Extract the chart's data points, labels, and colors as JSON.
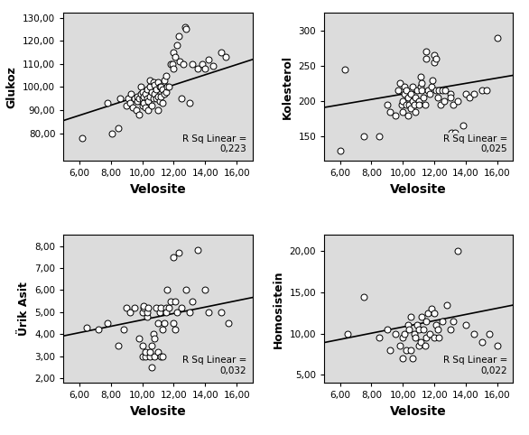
{
  "plots": [
    {
      "ylabel": "Glukoz",
      "xlabel": "Velosite",
      "xlim": [
        5.0,
        17.0
      ],
      "ylim": [
        68,
        132
      ],
      "yticks": [
        80,
        90,
        100,
        110,
        120,
        130
      ],
      "ytick_labels": [
        "80,00",
        "90,00",
        "100,00",
        "110,00",
        "120,00",
        "130,00"
      ],
      "xticks": [
        6,
        8,
        10,
        12,
        14,
        16
      ],
      "xtick_labels": [
        "6,00",
        "8,00",
        "10,00",
        "12,00",
        "14,00",
        "16,00"
      ],
      "r_sq": "R Sq Linear =\n0,223",
      "slope": 2.2,
      "intercept": 74.5,
      "x": [
        6.2,
        7.8,
        8.1,
        8.5,
        8.6,
        9.0,
        9.1,
        9.2,
        9.3,
        9.4,
        9.5,
        9.6,
        9.7,
        9.7,
        9.8,
        9.8,
        9.9,
        9.9,
        10.0,
        10.0,
        10.0,
        10.1,
        10.1,
        10.2,
        10.2,
        10.3,
        10.3,
        10.4,
        10.4,
        10.5,
        10.5,
        10.5,
        10.6,
        10.6,
        10.7,
        10.7,
        10.8,
        10.8,
        10.9,
        10.9,
        11.0,
        11.0,
        11.0,
        11.1,
        11.1,
        11.2,
        11.2,
        11.3,
        11.3,
        11.4,
        11.4,
        11.5,
        11.5,
        11.6,
        11.7,
        11.8,
        11.9,
        12.0,
        12.0,
        12.1,
        12.2,
        12.3,
        12.4,
        12.5,
        12.6,
        12.7,
        12.8,
        13.0,
        13.2,
        13.5,
        13.8,
        14.0,
        14.2,
        14.5,
        15.0,
        15.3
      ],
      "y": [
        78,
        93,
        80,
        82,
        95,
        92,
        95,
        93,
        97,
        91,
        95,
        90,
        94,
        96,
        88,
        95,
        97,
        100,
        92,
        95,
        98,
        93,
        96,
        91,
        97,
        95,
        99,
        90,
        94,
        96,
        100,
        103,
        92,
        98,
        95,
        102,
        97,
        101,
        95,
        99,
        90,
        96,
        102,
        94,
        100,
        96,
        100,
        93,
        99,
        97,
        103,
        98,
        105,
        100,
        100,
        110,
        110,
        108,
        115,
        113,
        118,
        122,
        111,
        95,
        110,
        126,
        125,
        93,
        110,
        108,
        110,
        108,
        112,
        109,
        115,
        113
      ]
    },
    {
      "ylabel": "Kolesterol",
      "xlabel": "Velosite",
      "xlim": [
        5.0,
        17.0
      ],
      "ylim": [
        115,
        325
      ],
      "yticks": [
        150,
        200,
        250,
        300
      ],
      "ytick_labels": [
        "150",
        "200",
        "250",
        "300"
      ],
      "xticks": [
        6,
        8,
        10,
        12,
        14,
        16
      ],
      "xtick_labels": [
        "6,00",
        "8,00",
        "10,00",
        "12,00",
        "14,00",
        "16,00"
      ],
      "r_sq": "R Sq Linear =\n0,025",
      "slope": 3.8,
      "intercept": 172.0,
      "x": [
        6.0,
        6.3,
        7.5,
        8.5,
        9.0,
        9.2,
        9.5,
        9.7,
        9.8,
        9.9,
        10.0,
        10.0,
        10.1,
        10.1,
        10.2,
        10.2,
        10.3,
        10.3,
        10.4,
        10.5,
        10.5,
        10.6,
        10.6,
        10.7,
        10.8,
        10.8,
        10.9,
        11.0,
        11.0,
        11.1,
        11.1,
        11.2,
        11.2,
        11.3,
        11.4,
        11.5,
        11.5,
        11.6,
        11.7,
        11.8,
        11.9,
        12.0,
        12.0,
        12.1,
        12.1,
        12.2,
        12.3,
        12.4,
        12.5,
        12.6,
        12.7,
        13.0,
        13.0,
        13.1,
        13.2,
        13.3,
        13.5,
        13.8,
        14.0,
        14.2,
        14.5,
        15.0,
        15.3,
        16.0
      ],
      "y": [
        130,
        245,
        150,
        150,
        195,
        185,
        180,
        215,
        225,
        195,
        185,
        200,
        210,
        220,
        195,
        215,
        205,
        180,
        195,
        210,
        190,
        200,
        220,
        195,
        185,
        205,
        215,
        200,
        195,
        220,
        235,
        215,
        225,
        205,
        195,
        260,
        270,
        215,
        210,
        220,
        230,
        265,
        255,
        260,
        215,
        205,
        215,
        195,
        215,
        200,
        215,
        210,
        205,
        155,
        195,
        155,
        200,
        165,
        210,
        205,
        210,
        215,
        215,
        290
      ]
    },
    {
      "ylabel": "Ürik Asit",
      "xlabel": "Velosite",
      "xlim": [
        5.0,
        17.0
      ],
      "ylim": [
        1.8,
        8.5
      ],
      "yticks": [
        2,
        3,
        4,
        5,
        6,
        7,
        8
      ],
      "ytick_labels": [
        "2,00",
        "3,00",
        "4,00",
        "5,00",
        "6,00",
        "7,00",
        "8,00"
      ],
      "xticks": [
        6,
        8,
        10,
        12,
        14,
        16
      ],
      "xtick_labels": [
        "6,00",
        "8,00",
        "10,00",
        "12,00",
        "14,00",
        "16,00"
      ],
      "r_sq": "R Sq Linear =\n0,032",
      "slope": 0.145,
      "intercept": 3.2,
      "x": [
        6.5,
        7.2,
        7.8,
        8.5,
        8.8,
        9.0,
        9.2,
        9.5,
        9.8,
        10.0,
        10.0,
        10.0,
        10.1,
        10.1,
        10.2,
        10.2,
        10.3,
        10.3,
        10.4,
        10.5,
        10.5,
        10.6,
        10.6,
        10.7,
        10.8,
        10.8,
        10.9,
        11.0,
        11.0,
        11.1,
        11.2,
        11.2,
        11.3,
        11.3,
        11.4,
        11.5,
        11.5,
        11.6,
        11.7,
        11.8,
        12.0,
        12.0,
        12.1,
        12.1,
        12.2,
        12.3,
        12.5,
        12.8,
        13.0,
        13.2,
        13.5,
        14.0,
        14.2,
        15.0,
        15.5
      ],
      "y": [
        4.3,
        4.2,
        4.5,
        3.5,
        4.2,
        5.2,
        5.0,
        5.2,
        3.8,
        3.0,
        3.5,
        5.0,
        5.2,
        5.3,
        3.0,
        3.2,
        4.8,
        5.0,
        5.2,
        3.0,
        3.2,
        3.5,
        2.5,
        4.0,
        3.0,
        3.8,
        5.2,
        3.2,
        4.5,
        5.0,
        3.0,
        5.2,
        3.0,
        4.2,
        4.5,
        5.2,
        5.0,
        6.0,
        5.2,
        5.5,
        4.5,
        7.5,
        4.2,
        5.5,
        5.0,
        7.7,
        5.2,
        6.0,
        5.0,
        5.5,
        7.8,
        6.0,
        5.0,
        5.0,
        4.5
      ]
    },
    {
      "ylabel": "Homosistein",
      "xlabel": "Velosite",
      "xlim": [
        5.0,
        17.0
      ],
      "ylim": [
        4.0,
        22.0
      ],
      "yticks": [
        5,
        10,
        15,
        20
      ],
      "ytick_labels": [
        "5,00",
        "10,00",
        "15,00",
        "20,00"
      ],
      "xticks": [
        6,
        8,
        10,
        12,
        14,
        16
      ],
      "xtick_labels": [
        "6,00",
        "8,00",
        "10,00",
        "12,00",
        "14,00",
        "16,00"
      ],
      "r_sq": "R Sq Linear =\n0,022",
      "slope": 0.38,
      "intercept": 7.0,
      "x": [
        6.5,
        7.5,
        8.5,
        9.0,
        9.2,
        9.5,
        9.8,
        10.0,
        10.0,
        10.1,
        10.2,
        10.3,
        10.4,
        10.5,
        10.5,
        10.6,
        10.7,
        10.8,
        10.9,
        11.0,
        11.0,
        11.1,
        11.2,
        11.3,
        11.4,
        11.5,
        11.5,
        11.6,
        11.7,
        11.8,
        12.0,
        12.0,
        12.1,
        12.2,
        12.3,
        12.5,
        12.8,
        13.0,
        13.2,
        13.5,
        14.0,
        14.5,
        15.0,
        15.5,
        16.0
      ],
      "y": [
        10.0,
        14.5,
        9.5,
        10.5,
        8.0,
        10.0,
        8.5,
        7.0,
        9.5,
        10.0,
        8.0,
        11.0,
        10.5,
        8.0,
        12.0,
        7.0,
        10.0,
        9.5,
        11.0,
        8.5,
        10.5,
        9.0,
        12.0,
        10.5,
        8.5,
        11.5,
        9.5,
        12.5,
        10.0,
        13.0,
        9.5,
        12.5,
        11.0,
        10.5,
        9.5,
        11.5,
        13.5,
        10.5,
        11.5,
        20.0,
        11.0,
        10.0,
        9.0,
        10.0,
        8.5
      ]
    }
  ],
  "bg_color": "#dcdcdc",
  "circle_color": "white",
  "circle_edge_color": "black",
  "line_color": "black",
  "marker_size": 5,
  "linewidth": 1.2,
  "xlabel_fontsize": 10,
  "ylabel_fontsize": 9,
  "tick_fontsize": 7.5,
  "rsq_fontsize": 7.5
}
